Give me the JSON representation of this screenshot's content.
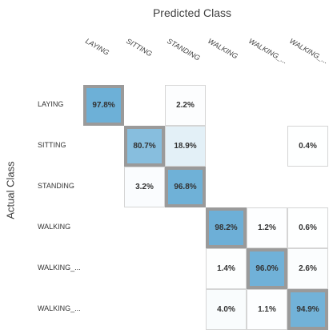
{
  "chart_data": {
    "type": "heatmap",
    "title": "",
    "xlabel": "Predicted Class",
    "ylabel": "Actual Class",
    "columns": [
      "LAYING",
      "SITTING",
      "STANDING",
      "WALKING",
      "WALKING_...",
      "WALKING_..."
    ],
    "rows": [
      "LAYING",
      "SITTING",
      "STANDING",
      "WALKING",
      "WALKING_...",
      "WALKING_..."
    ],
    "values": [
      [
        97.8,
        null,
        2.2,
        null,
        null,
        null
      ],
      [
        null,
        80.7,
        18.9,
        null,
        null,
        0.4
      ],
      [
        null,
        3.2,
        96.8,
        null,
        null,
        null
      ],
      [
        null,
        null,
        null,
        98.2,
        1.2,
        0.6
      ],
      [
        null,
        null,
        null,
        1.4,
        96.0,
        2.6
      ],
      [
        null,
        null,
        null,
        4.0,
        1.1,
        94.9
      ]
    ],
    "value_suffix": "%",
    "colors": {
      "high": "#6aaed6",
      "low": "#ffffff",
      "diag_border": "#9a9a9a",
      "off_border": "#d5d5d5"
    }
  }
}
